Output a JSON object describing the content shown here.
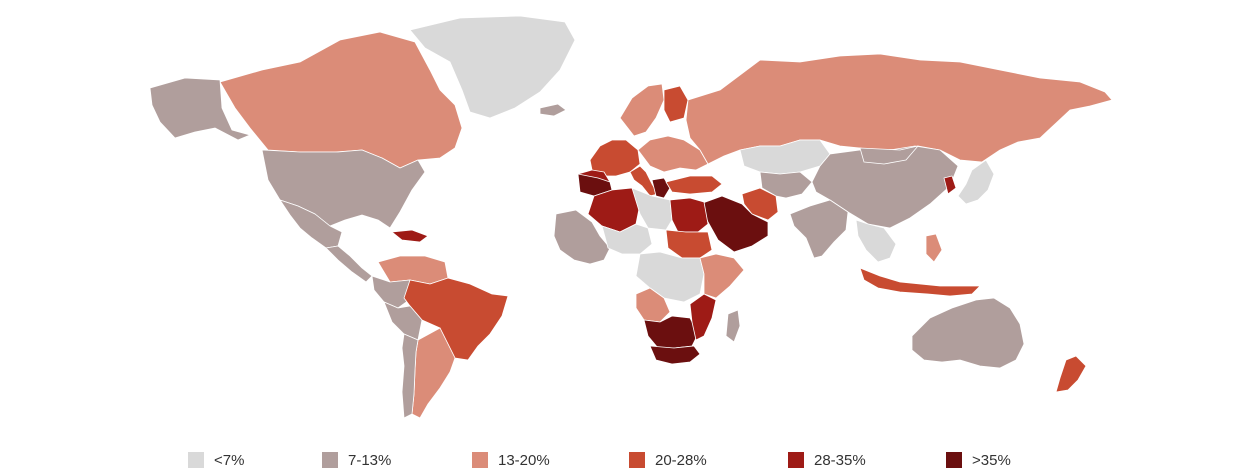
{
  "legend": {
    "items": [
      {
        "label": "<7%",
        "color": "#d9d9d9"
      },
      {
        "label": "7-13%",
        "color": "#b09e9c"
      },
      {
        "label": "13-20%",
        "color": "#db8c78"
      },
      {
        "label": "20-28%",
        "color": "#c84b31"
      },
      {
        "label": "28-35%",
        "color": "#9e1b16"
      },
      {
        "label": ">35%",
        "color": "#6b0f0f"
      }
    ]
  },
  "regions": [
    {
      "name": "Greenland",
      "class": "<7%"
    },
    {
      "name": "Canada",
      "class": "13-20%"
    },
    {
      "name": "Alaska",
      "class": "7-13%"
    },
    {
      "name": "United States",
      "class": "7-13%"
    },
    {
      "name": "Mexico",
      "class": "7-13%"
    },
    {
      "name": "Central America",
      "class": "7-13%"
    },
    {
      "name": "Caribbean",
      "class": "28-35%"
    },
    {
      "name": "Venezuela",
      "class": "13-20%"
    },
    {
      "name": "Colombia",
      "class": "7-13%"
    },
    {
      "name": "Brazil",
      "class": "20-28%"
    },
    {
      "name": "Peru",
      "class": "7-13%"
    },
    {
      "name": "Argentina",
      "class": "13-20%"
    },
    {
      "name": "Chile",
      "class": "7-13%"
    },
    {
      "name": "Iceland",
      "class": "7-13%"
    },
    {
      "name": "Scandinavia",
      "class": "13-20%"
    },
    {
      "name": "Finland",
      "class": "20-28%"
    },
    {
      "name": "Western Europe",
      "class": "20-28%"
    },
    {
      "name": "Spain",
      "class": "28-35%"
    },
    {
      "name": "Italy",
      "class": "20-28%"
    },
    {
      "name": "Greece",
      "class": ">35%"
    },
    {
      "name": "Eastern Europe",
      "class": "13-20%"
    },
    {
      "name": "Russia",
      "class": "13-20%"
    },
    {
      "name": "Kazakhstan",
      "class": "<7%"
    },
    {
      "name": "Turkey",
      "class": "20-28%"
    },
    {
      "name": "Iran",
      "class": "20-28%"
    },
    {
      "name": "Saudi Arabia",
      "class": ">35%"
    },
    {
      "name": "Middle Asia",
      "class": "7-13%"
    },
    {
      "name": "China",
      "class": "7-13%"
    },
    {
      "name": "Mongolia",
      "class": "7-13%"
    },
    {
      "name": "India",
      "class": "7-13%"
    },
    {
      "name": "Southeast Asia",
      "class": "<7%"
    },
    {
      "name": "Japan",
      "class": "<7%"
    },
    {
      "name": "Korea",
      "class": "28-35%"
    },
    {
      "name": "Indonesia",
      "class": "20-28%"
    },
    {
      "name": "Philippines",
      "class": "13-20%"
    },
    {
      "name": "Australia",
      "class": "7-13%"
    },
    {
      "name": "New Zealand",
      "class": "20-28%"
    },
    {
      "name": "Morocco",
      "class": ">35%"
    },
    {
      "name": "Algeria",
      "class": "28-35%"
    },
    {
      "name": "Libya",
      "class": "<7%"
    },
    {
      "name": "Egypt",
      "class": "28-35%"
    },
    {
      "name": "West Africa",
      "class": "7-13%"
    },
    {
      "name": "Sahel",
      "class": "<7%"
    },
    {
      "name": "Sudan",
      "class": "20-28%"
    },
    {
      "name": "Central Africa",
      "class": "<7%"
    },
    {
      "name": "East Africa",
      "class": "13-20%"
    },
    {
      "name": "Angola",
      "class": "13-20%"
    },
    {
      "name": "Southern Africa",
      "class": ">35%"
    },
    {
      "name": "South Africa",
      "class": ">35%"
    },
    {
      "name": "Mozambique",
      "class": "28-35%"
    },
    {
      "name": "Madagascar",
      "class": "7-13%"
    }
  ]
}
